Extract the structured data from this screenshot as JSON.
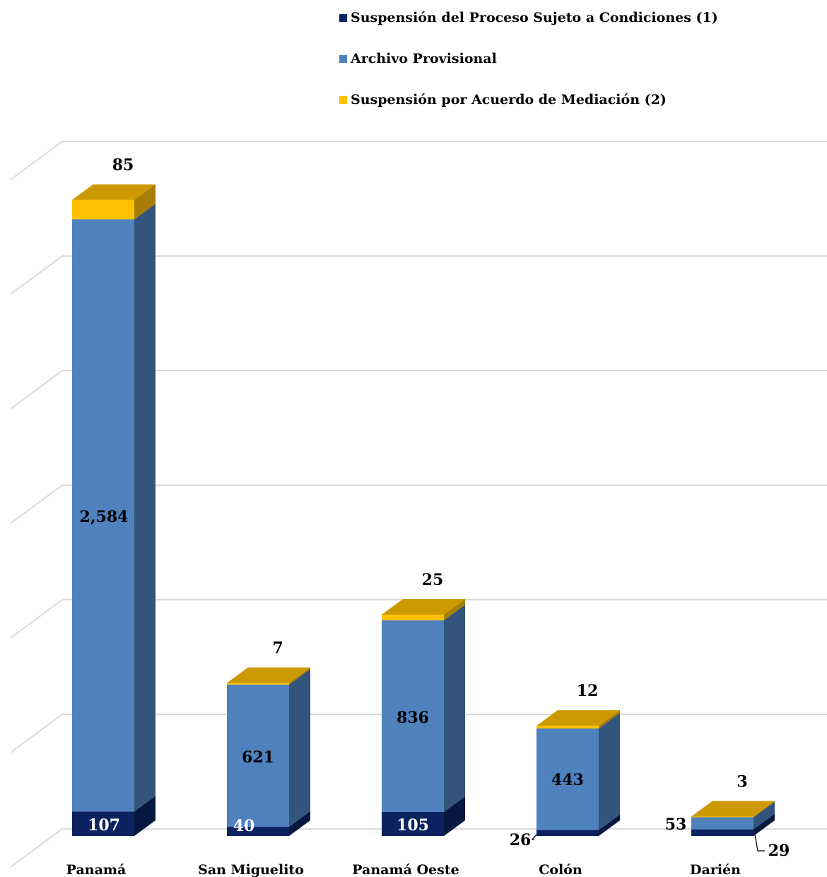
{
  "chart_data": {
    "type": "bar",
    "stacked": true,
    "three_d": true,
    "categories": [
      "Panamá",
      "San Miguelito",
      "Panamá Oeste",
      "Colón",
      "Darién"
    ],
    "series": [
      {
        "name": "Suspensión del Proceso Sujeto a Condiciones  (1)",
        "values": [
          107,
          40,
          105,
          26,
          29
        ],
        "color": "#0b2461"
      },
      {
        "name": "Archivo Provisional",
        "values": [
          2584,
          621,
          836,
          443,
          53
        ],
        "color": "#4f81bd"
      },
      {
        "name": "Suspensión por Acuerdo de Mediación (2)",
        "values": [
          85,
          7,
          25,
          12,
          3
        ],
        "color": "#ffc000"
      }
    ],
    "ylim": [
      0,
      3000
    ],
    "grid": true,
    "legend_position": "top-right"
  }
}
